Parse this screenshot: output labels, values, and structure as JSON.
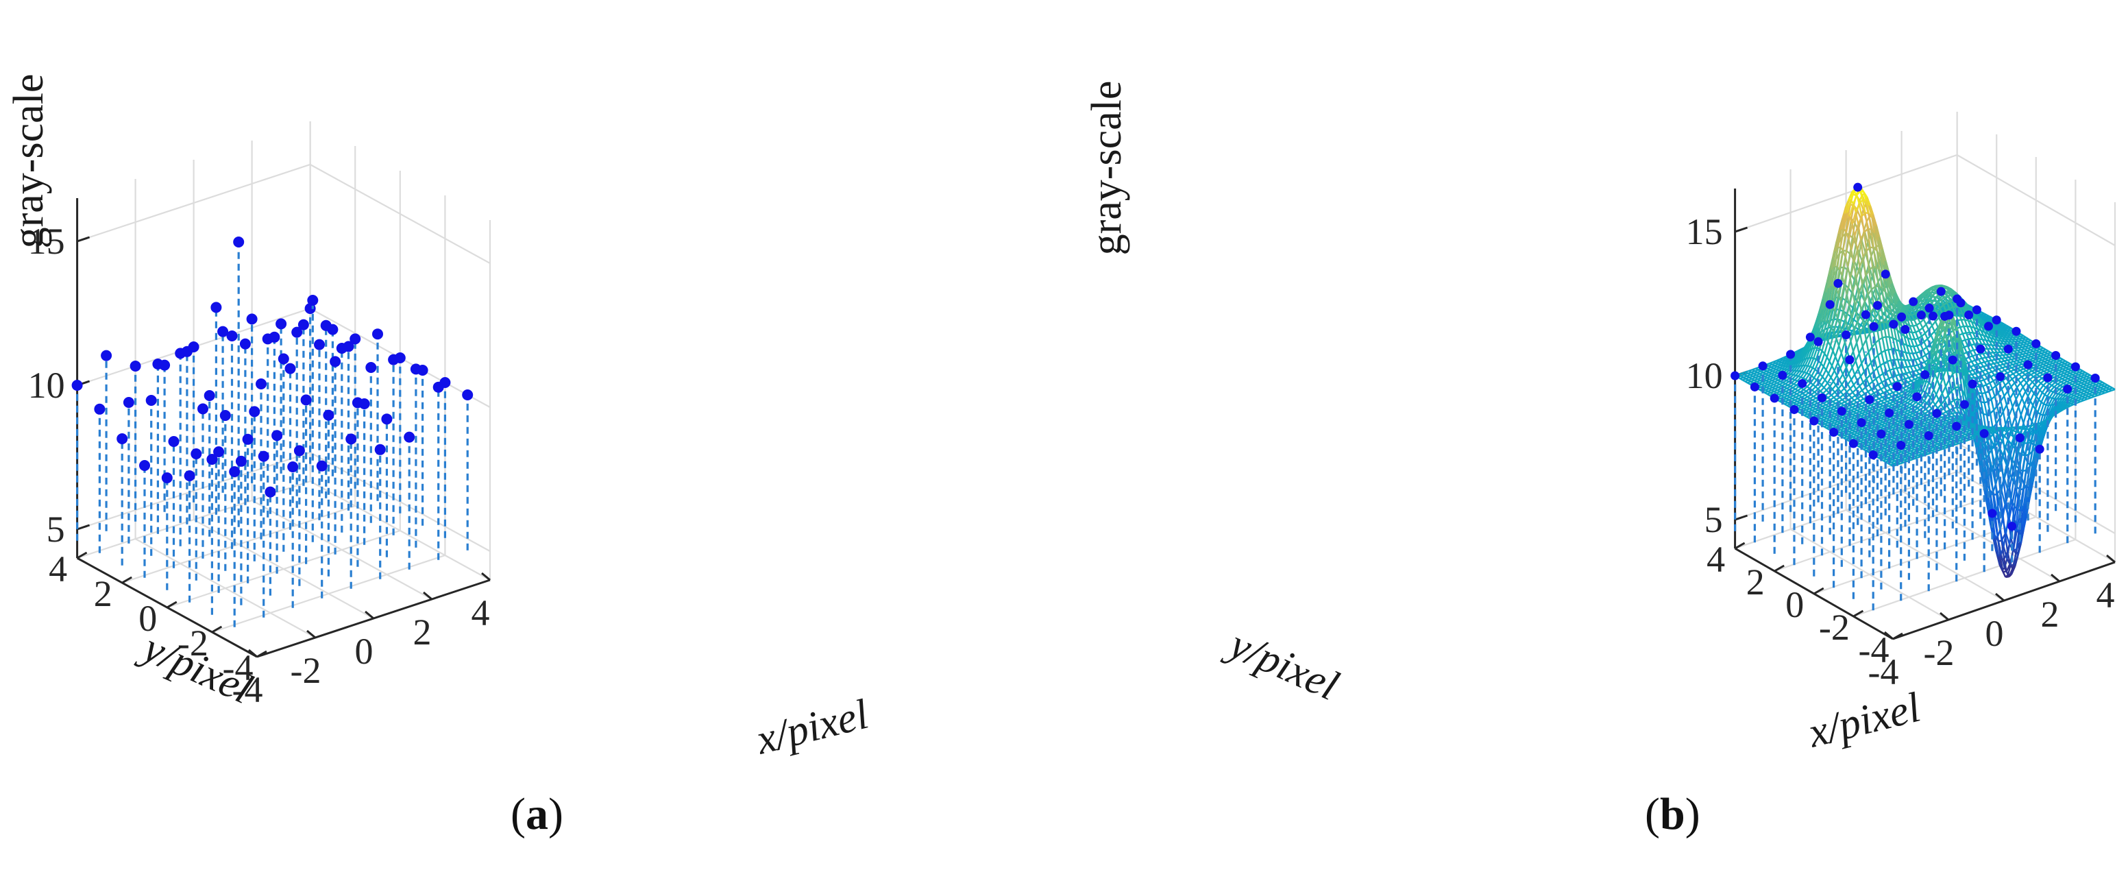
{
  "chart_data": [
    {
      "type": "scatter3d-stem",
      "label_open": "(",
      "label": "a",
      "label_close": ")",
      "xlabel": "x/pixel",
      "ylabel": "y/pixel",
      "zlabel": "gray-scale",
      "xlim": [
        -4,
        4
      ],
      "ylim": [
        -4,
        4
      ],
      "zlim": [
        4,
        16.5
      ],
      "xticks": [
        "-4",
        "-2",
        "0",
        "2",
        "4"
      ],
      "yticks": [
        "-4",
        "-2",
        "0",
        "2",
        "4"
      ],
      "zticks": [
        "5",
        "10",
        "15"
      ],
      "grid": true,
      "marker_color": "#1010e8",
      "stem_color": "#2a7fd1",
      "grid_x": [
        -4,
        -3,
        -2,
        -1,
        0,
        1,
        2,
        3,
        4
      ],
      "grid_y": [
        4,
        3,
        2,
        1,
        0,
        -1,
        -2,
        -3
      ],
      "values": [
        [
          10,
          10.7,
          10,
          9.7,
          10,
          10.2,
          10.3,
          9.8,
          10
        ],
        [
          9.6,
          9.5,
          10.5,
          10.6,
          11.8,
          10.2,
          10.1,
          10.2,
          9.7
        ],
        [
          9,
          10,
          11.3,
          9.5,
          14.5,
          10.8,
          10.7,
          10.6,
          9.8
        ],
        [
          8.5,
          9,
          9.8,
          12,
          10,
          10.2,
          10.7,
          10.3,
          10.4
        ],
        [
          8.5,
          9,
          10,
          9.8,
          11.3,
          13,
          11,
          10,
          10
        ],
        [
          9,
          9.5,
          9.6,
          9.4,
          10.3,
          11.3,
          9.5,
          10.7,
          10
        ],
        [
          10,
          9.6,
          8.2,
          9.3,
          10.2,
          10.3,
          9.4,
          10.8,
          10
        ],
        [
          10,
          10.2,
          9.5,
          9.2,
          9.8,
          9.1,
          9.2,
          10.6,
          10
        ]
      ]
    },
    {
      "type": "surface3d",
      "label_open": "(",
      "label": "b",
      "label_close": ")",
      "xlabel": "x/pixel",
      "ylabel": "y/pixel",
      "zlabel": "gray-scale",
      "xlim": [
        -4,
        4
      ],
      "ylim": [
        -4,
        4
      ],
      "zlim": [
        4,
        16.5
      ],
      "xticks": [
        "-4",
        "-2",
        "0",
        "2",
        "4"
      ],
      "yticks": [
        "-4",
        "-2",
        "0",
        "2",
        "4"
      ],
      "zticks": [
        "5",
        "10",
        "15"
      ],
      "grid": true,
      "colormap": "parula",
      "marker_color": "#1010e8",
      "stem_color": "#2a7fd1",
      "surface": {
        "base": 10,
        "peak": {
          "x": -1,
          "y": 2,
          "amplitude": 6.3
        },
        "bump": {
          "x": 0,
          "y": -1.2,
          "amplitude": 3
        },
        "dip": {
          "x": 1.2,
          "y": -2.5,
          "amplitude": -6.2
        },
        "shoulder": {
          "x": 1.6,
          "y": 1.5,
          "amplitude": 2.2
        }
      }
    }
  ]
}
